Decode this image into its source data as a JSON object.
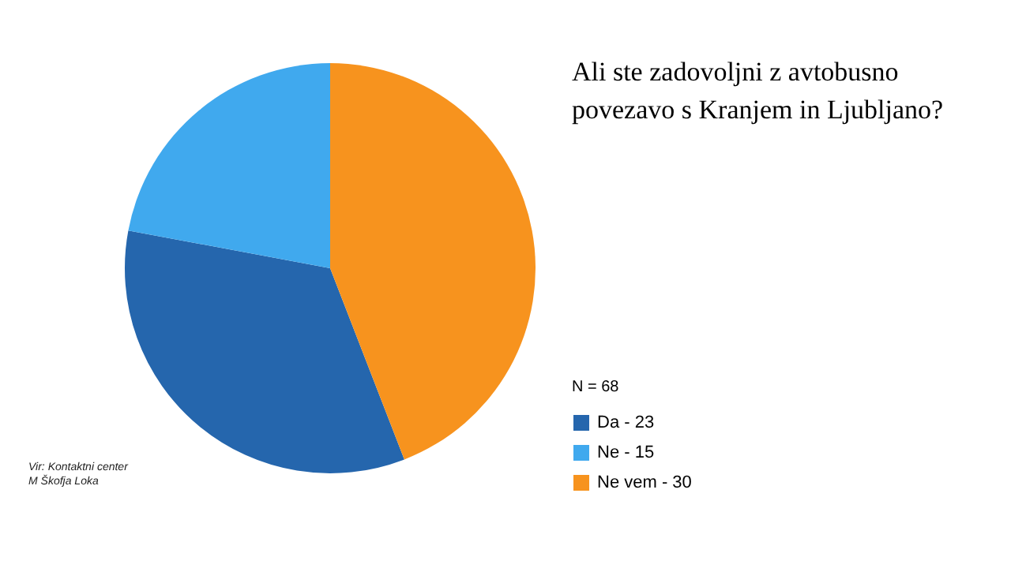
{
  "chart_data": {
    "type": "pie",
    "title": "Ali ste zadovoljni z avtobusno povezavo s Kranjem in Ljubljano?",
    "categories": [
      "Da",
      "Ne",
      "Ne vem"
    ],
    "values": [
      23,
      15,
      30
    ],
    "value_labels": [
      "23",
      "15",
      "30"
    ],
    "colors": [
      "#2566ad",
      "#40a9ee",
      "#f7931e"
    ],
    "legend_title": "N = 68",
    "legend": "bottom right",
    "annotations": [
      "Vir: Kontaktni center M Škofja Loka"
    ]
  }
}
